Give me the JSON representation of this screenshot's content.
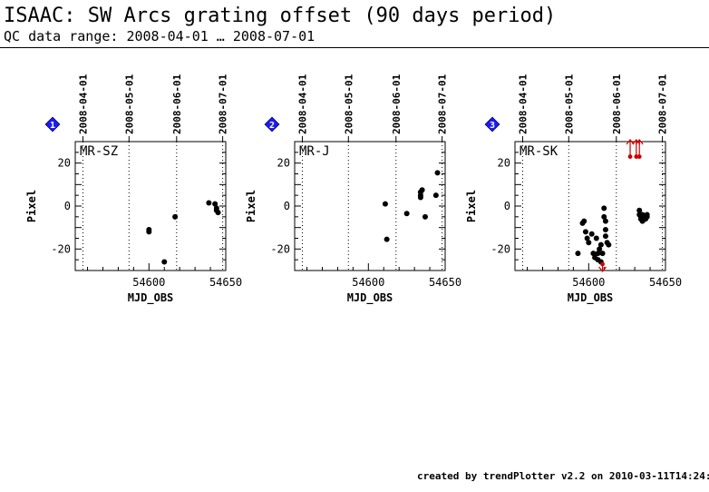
{
  "header": {
    "title": "ISAAC: SW Arcs grating offset (90 days period)",
    "subtitle": "QC data range: 2008-04-01 … 2008-07-01"
  },
  "footer": {
    "text": "created by trendPlotter v2.2 on 2010-03-11T14:24:17"
  },
  "colors": {
    "marker": "#000000",
    "outlier": "#cc0000",
    "badge": "#1a1aff"
  },
  "chart_data": [
    {
      "type": "scatter",
      "index": "1",
      "label": "MR-SZ",
      "xlabel": "MJD_OBS",
      "ylabel": "Pixel",
      "xlim": [
        54552,
        54650
      ],
      "ylim": [
        -30,
        30
      ],
      "xticks": [
        54600,
        54650
      ],
      "yticks": [
        20,
        0,
        -20
      ],
      "date_labels": [
        "2008-04-01",
        "2008-05-01",
        "2008-06-01",
        "2008-07-01"
      ],
      "date_mjd": [
        54557,
        54587,
        54618,
        54648
      ],
      "points": [
        [
          54600,
          -11
        ],
        [
          54600,
          -12
        ],
        [
          54610,
          -26
        ],
        [
          54617,
          -5
        ],
        [
          54639,
          1.5
        ],
        [
          54643,
          1
        ],
        [
          54644,
          -1
        ],
        [
          54644,
          -2
        ],
        [
          54645,
          -3
        ]
      ],
      "outliers": []
    },
    {
      "type": "scatter",
      "index": "2",
      "label": "MR-J",
      "xlabel": "MJD_OBS",
      "ylabel": "Pixel",
      "xlim": [
        54552,
        54650
      ],
      "ylim": [
        -30,
        30
      ],
      "xticks": [
        54600,
        54650
      ],
      "yticks": [
        20,
        0,
        -20
      ],
      "date_labels": [
        "2008-04-01",
        "2008-05-01",
        "2008-06-01",
        "2008-07-01"
      ],
      "date_mjd": [
        54557,
        54587,
        54618,
        54648
      ],
      "points": [
        [
          54611,
          1
        ],
        [
          54612,
          -15.5
        ],
        [
          54625,
          -3.5
        ],
        [
          54634,
          4
        ],
        [
          54634,
          5
        ],
        [
          54634,
          6.5
        ],
        [
          54635,
          7.5
        ],
        [
          54637,
          -5
        ],
        [
          54644,
          5
        ],
        [
          54645,
          15.5
        ]
      ],
      "outliers": []
    },
    {
      "type": "scatter",
      "index": "3",
      "label": "MR-SK",
      "xlabel": "MJD_OBS",
      "ylabel": "Pixel",
      "xlim": [
        54552,
        54650
      ],
      "ylim": [
        -30,
        30
      ],
      "xticks": [
        54600,
        54650
      ],
      "yticks": [
        20,
        0,
        -20
      ],
      "date_labels": [
        "2008-04-01",
        "2008-05-01",
        "2008-06-01",
        "2008-07-01"
      ],
      "date_mjd": [
        54557,
        54587,
        54618,
        54648
      ],
      "points": [
        [
          54593,
          -22
        ],
        [
          54596,
          -8
        ],
        [
          54597,
          -7
        ],
        [
          54598,
          -12
        ],
        [
          54599,
          -15
        ],
        [
          54600,
          -17
        ],
        [
          54602,
          -13
        ],
        [
          54603,
          -22
        ],
        [
          54604,
          -24
        ],
        [
          54605,
          -15
        ],
        [
          54606,
          -22
        ],
        [
          54606,
          -25
        ],
        [
          54607,
          -20
        ],
        [
          54608,
          -18
        ],
        [
          54608,
          -26
        ],
        [
          54609,
          -22
        ],
        [
          54610,
          -1
        ],
        [
          54610,
          -5
        ],
        [
          54611,
          -7
        ],
        [
          54611,
          -11
        ],
        [
          54611,
          -14
        ],
        [
          54612,
          -17
        ],
        [
          54613,
          -18
        ],
        [
          54633,
          -2
        ],
        [
          54633,
          -4
        ],
        [
          54634,
          -5
        ],
        [
          54634,
          -6
        ],
        [
          54635,
          -7
        ],
        [
          54635,
          -4
        ],
        [
          54636,
          -5
        ],
        [
          54637,
          -6
        ],
        [
          54638,
          -5
        ],
        [
          54638,
          -4
        ]
      ],
      "outliers": [
        {
          "x": 54609,
          "y": -27,
          "dir": "down"
        },
        {
          "x": 54627,
          "y": 23,
          "dir": "up"
        },
        {
          "x": 54631,
          "y": 23,
          "dir": "up"
        },
        {
          "x": 54633,
          "y": 23,
          "dir": "up"
        }
      ]
    }
  ]
}
